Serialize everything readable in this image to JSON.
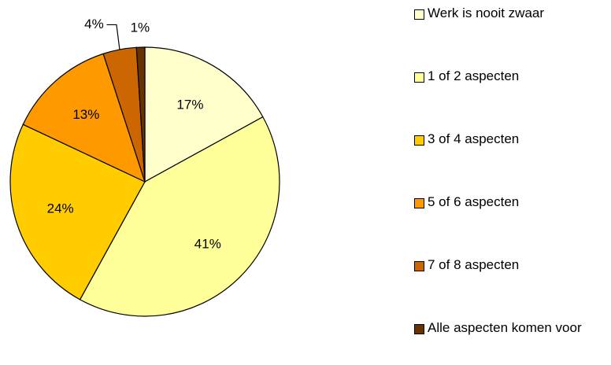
{
  "chart_data": {
    "type": "pie",
    "categories": [
      "Werk is nooit zwaar",
      "1 of 2 aspecten",
      "3 of 4 aspecten",
      "5 of 6 aspecten",
      "7 of 8 aspecten",
      "Alle aspecten komen voor"
    ],
    "values": [
      17,
      41,
      24,
      13,
      4,
      1
    ],
    "value_labels": [
      "17%",
      "41%",
      "24%",
      "13%",
      "4%",
      "1%"
    ],
    "colors": [
      "#FFFFCC",
      "#FFFF99",
      "#FFCC00",
      "#FF9900",
      "#CC6600",
      "#663300"
    ],
    "legend": "right"
  }
}
